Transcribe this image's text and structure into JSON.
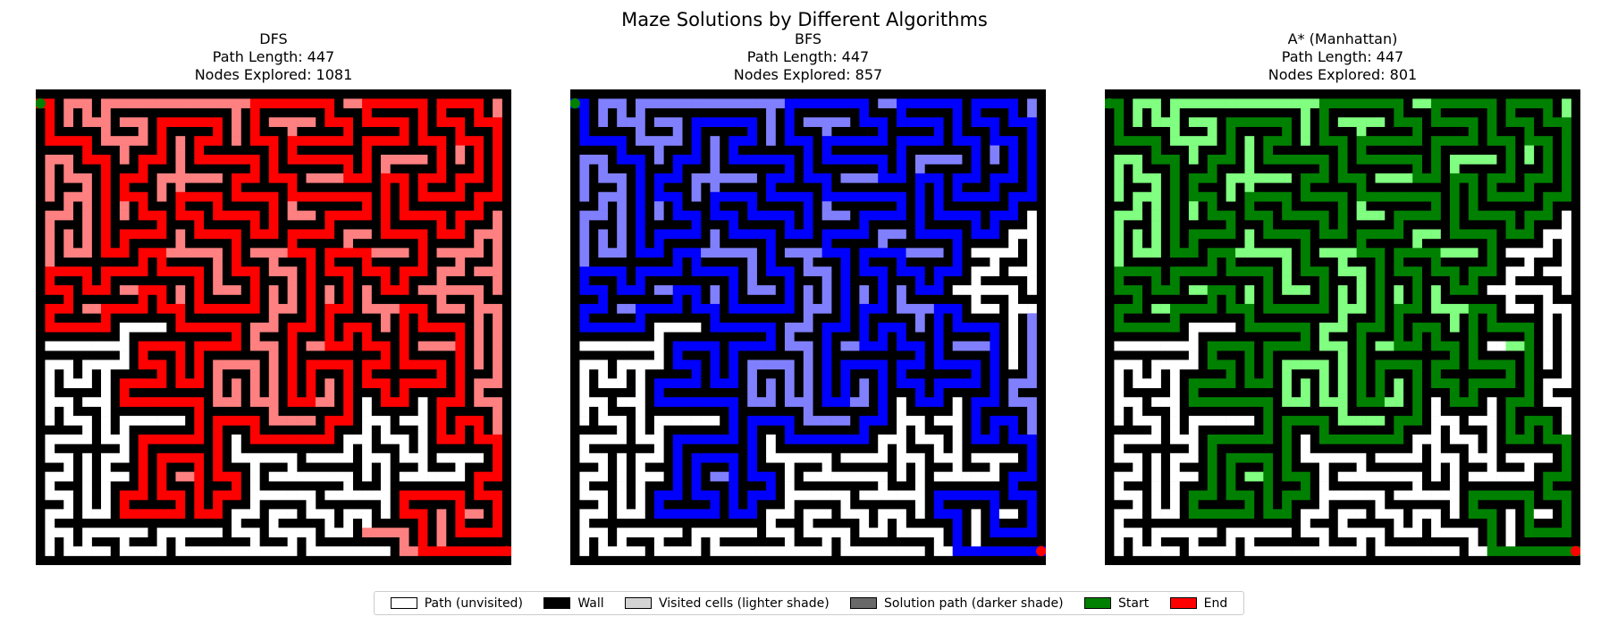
{
  "title": "Maze Solutions by Different Algorithms",
  "colors": {
    "wall": "#000000",
    "path": "#ffffff",
    "dfs_solution": "#ff0000",
    "dfs_visited": "#ff8080",
    "bfs_solution": "#0000ff",
    "bfs_visited": "#8080ff",
    "astar_solution": "#008000",
    "astar_visited": "#80ff80",
    "start": "#008000",
    "end": "#ff0000"
  },
  "panels": [
    {
      "title": "DFS",
      "path_length_text": "Path Length: 447",
      "nodes_text": "Nodes Explored: 1081",
      "scheme": "dfs"
    },
    {
      "title": "BFS",
      "path_length_text": "Path Length: 447",
      "nodes_text": "Nodes Explored: 857",
      "scheme": "bfs"
    },
    {
      "title": "A* (Manhattan)",
      "path_length_text": "Path Length: 447",
      "nodes_text": "Nodes Explored: 801",
      "scheme": "astar"
    }
  ],
  "legend": [
    {
      "label": "Path (unvisited)",
      "color": "#ffffff"
    },
    {
      "label": "Wall",
      "color": "#000000"
    },
    {
      "label": "Visited cells (lighter shade)",
      "color": "#d3d3d3"
    },
    {
      "label": "Solution path (darker shade)",
      "color": "#696969"
    },
    {
      "label": "Start",
      "color": "#008000"
    },
    {
      "label": "End",
      "color": "#ff0000"
    }
  ],
  "chart_data": [
    {
      "type": "heatmap",
      "title": "DFS",
      "subtitle": [
        "Path Length: 447",
        "Nodes Explored: 1081"
      ],
      "path_length": 447,
      "nodes_explored": 1081
    },
    {
      "type": "heatmap",
      "title": "BFS",
      "subtitle": [
        "Path Length: 447",
        "Nodes Explored: 857"
      ],
      "path_length": 447,
      "nodes_explored": 857
    },
    {
      "type": "heatmap",
      "title": "A* (Manhattan)",
      "subtitle": [
        "Path Length: 447",
        "Nodes Explored: 801"
      ],
      "path_length": 447,
      "nodes_explored": 801
    }
  ]
}
